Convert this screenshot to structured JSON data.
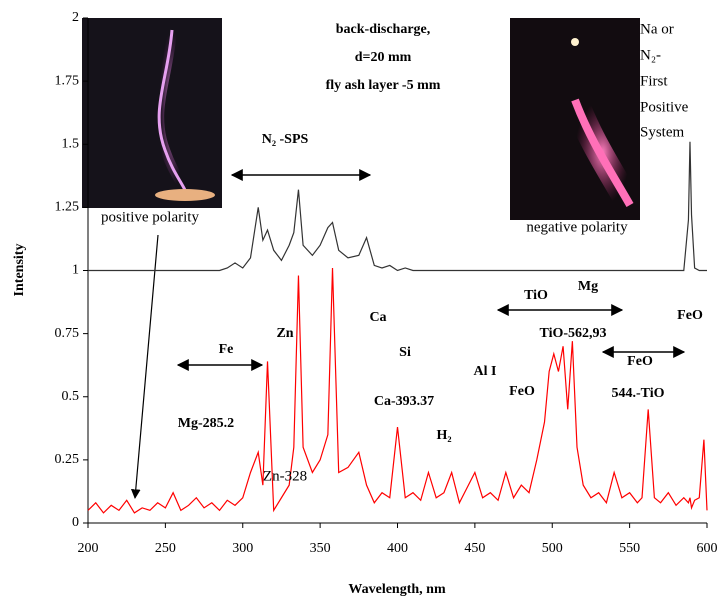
{
  "chart_data": {
    "type": "line",
    "x_label": "Wavelength, nm",
    "y_label": "Intensity",
    "xlim": [
      200,
      600
    ],
    "xticks": [
      200,
      250,
      300,
      350,
      400,
      450,
      500,
      550,
      600
    ],
    "ylim": [
      0,
      2
    ],
    "yticks": [
      0,
      0.25,
      0.5,
      0.75,
      1,
      1.25,
      1.5,
      1.75,
      2
    ],
    "x": [
      200,
      205,
      210,
      215,
      220,
      225,
      230,
      235,
      240,
      245,
      250,
      255,
      260,
      265,
      270,
      275,
      280,
      285,
      290,
      295,
      300,
      305,
      310,
      313,
      316,
      320,
      325,
      330,
      333,
      336,
      339,
      345,
      350,
      355,
      358,
      362,
      368,
      375,
      380,
      385,
      390,
      395,
      400,
      405,
      410,
      415,
      420,
      425,
      430,
      435,
      440,
      445,
      450,
      455,
      460,
      465,
      470,
      475,
      480,
      485,
      490,
      495,
      498,
      501,
      504,
      507,
      510,
      513,
      516,
      520,
      525,
      530,
      535,
      540,
      545,
      550,
      555,
      558,
      562,
      566,
      570,
      575,
      580,
      585,
      588,
      589,
      590,
      592,
      595,
      598,
      600
    ],
    "series": [
      {
        "color": "#333333",
        "values": [
          1,
          1,
          1,
          1,
          1,
          1,
          1,
          1,
          1,
          1,
          1,
          1,
          1,
          1,
          1,
          1,
          1,
          1,
          1.01,
          1.03,
          1.01,
          1.05,
          1.25,
          1.12,
          1.16,
          1.08,
          1.04,
          1.1,
          1.15,
          1.32,
          1.1,
          1.06,
          1.1,
          1.17,
          1.19,
          1.08,
          1.05,
          1.06,
          1.13,
          1.02,
          1.01,
          1.02,
          1,
          1.01,
          1,
          1,
          1,
          1,
          1,
          1,
          1,
          1,
          1,
          1,
          1,
          1,
          1,
          1,
          1,
          1,
          1,
          1,
          1,
          1,
          1,
          1,
          1,
          1,
          1,
          1,
          1,
          1,
          1,
          1,
          1,
          1,
          1,
          1,
          1,
          1,
          1,
          1,
          1,
          1,
          1.2,
          1.51,
          1.22,
          1.01,
          1,
          1,
          1
        ]
      },
      {
        "color": "#ff0000",
        "values": [
          0.05,
          0.08,
          0.04,
          0.07,
          0.05,
          0.09,
          0.04,
          0.06,
          0.05,
          0.08,
          0.06,
          0.12,
          0.05,
          0.07,
          0.1,
          0.06,
          0.08,
          0.05,
          0.09,
          0.07,
          0.1,
          0.2,
          0.28,
          0.15,
          0.64,
          0.05,
          0.1,
          0.15,
          0.3,
          0.98,
          0.3,
          0.2,
          0.25,
          0.35,
          1.01,
          0.2,
          0.22,
          0.28,
          0.15,
          0.08,
          0.12,
          0.1,
          0.38,
          0.1,
          0.12,
          0.09,
          0.2,
          0.1,
          0.12,
          0.2,
          0.08,
          0.14,
          0.2,
          0.1,
          0.12,
          0.09,
          0.2,
          0.1,
          0.15,
          0.12,
          0.25,
          0.4,
          0.6,
          0.67,
          0.6,
          0.7,
          0.45,
          0.72,
          0.3,
          0.15,
          0.1,
          0.12,
          0.08,
          0.2,
          0.1,
          0.12,
          0.08,
          0.1,
          0.45,
          0.1,
          0.08,
          0.12,
          0.07,
          0.1,
          0.08,
          0.1,
          0.06,
          0.09,
          0.1,
          0.33,
          0.05
        ]
      }
    ],
    "annotations": [
      "back-discharge,",
      "d=20 mm",
      "fly ash layer -5 mm",
      "N₂ -SPS",
      "positive polarity",
      "negative polarity",
      "Na or",
      "N₂-",
      "First",
      "Positive",
      "System",
      "Fe",
      "Zn",
      "Ca",
      "Si",
      "Ca-393.37",
      "Mg-285.2",
      "H₂",
      "Al I",
      "FeO",
      "TiO",
      "Mg",
      "TiO-562,93",
      "FeO",
      "FeO",
      "544.-TiO",
      "Zn-328"
    ]
  }
}
